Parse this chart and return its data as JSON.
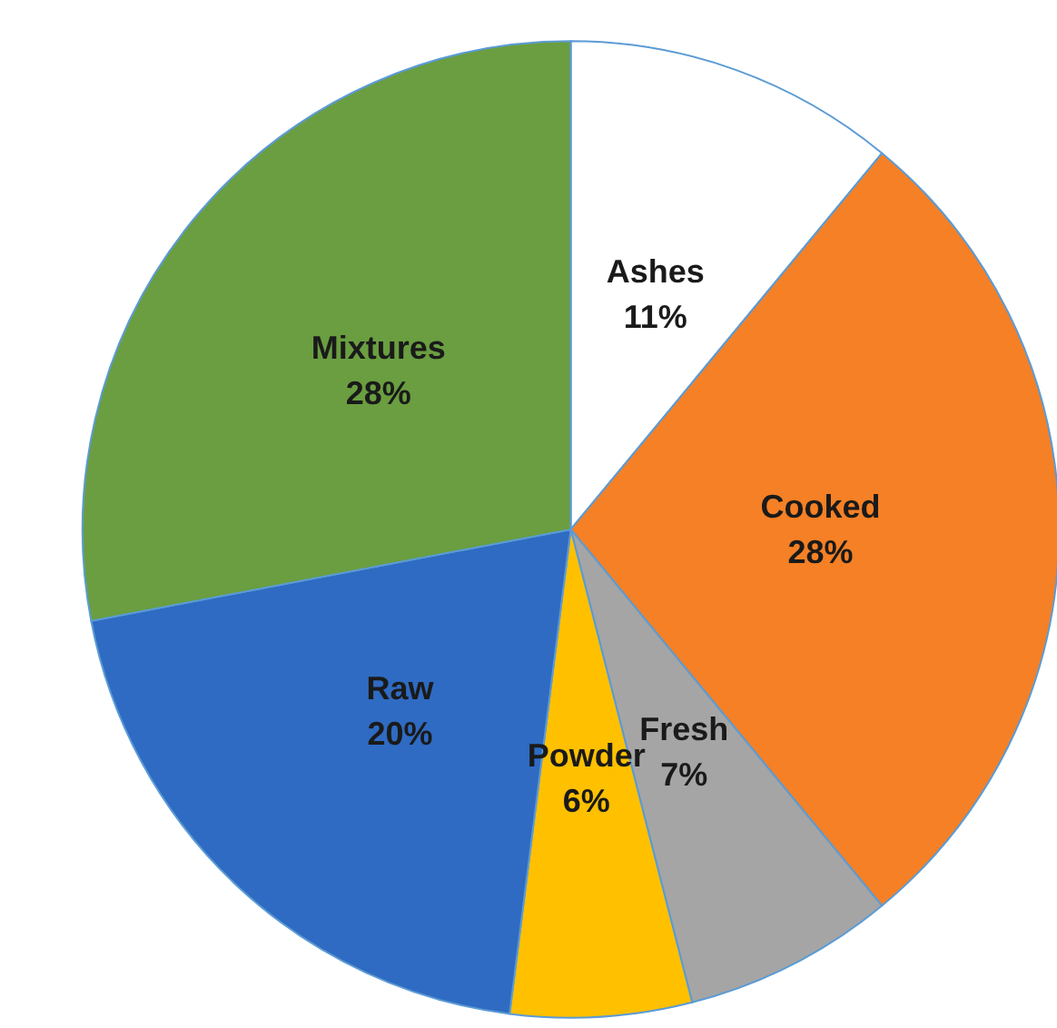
{
  "chart_data": {
    "type": "pie",
    "categories": [
      "Ashes",
      "Cooked",
      "Fresh",
      "Powder",
      "Raw",
      "Mixtures"
    ],
    "values": [
      11,
      28,
      7,
      6,
      20,
      28
    ],
    "value_labels": [
      "11%",
      "28%",
      "7%",
      "6%",
      "20%",
      "28%"
    ],
    "colors": [
      "#ffffff",
      "#f58025",
      "#a5a5a5",
      "#ffc000",
      "#2f6bc2",
      "#6a9e40"
    ],
    "legend": false
  }
}
